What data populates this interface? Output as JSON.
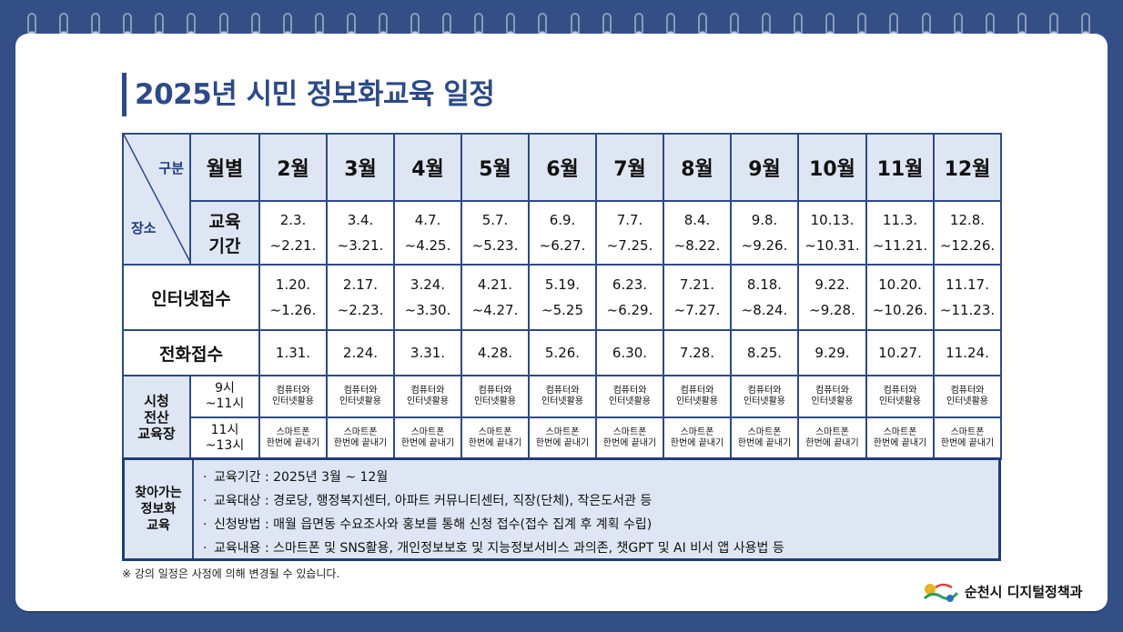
{
  "title": "2025년 시민 정보화교육 일정",
  "header": {
    "corner_top": "구분",
    "corner_bottom": "장소",
    "month_label": "월별",
    "months": [
      "2월",
      "3월",
      "4월",
      "5월",
      "6월",
      "7월",
      "8월",
      "9월",
      "10월",
      "11월",
      "12월"
    ]
  },
  "rows": {
    "period": {
      "label_line1": "교육",
      "label_line2": "기간",
      "start": [
        "2.3.",
        "3.4.",
        "4.7.",
        "5.7.",
        "6.9.",
        "7.7.",
        "8.4.",
        "9.8.",
        "10.13.",
        "11.3.",
        "12.8."
      ],
      "end": [
        "~2.21.",
        "~3.21.",
        "~4.25.",
        "~5.23.",
        "~6.27.",
        "~7.25.",
        "~8.22.",
        "~9.26.",
        "~10.31.",
        "~11.21.",
        "~12.26."
      ]
    },
    "internet": {
      "label": "인터넷접수",
      "start": [
        "1.20.",
        "2.17.",
        "3.24.",
        "4.21.",
        "5.19.",
        "6.23.",
        "7.21.",
        "8.18.",
        "9.22.",
        "10.20.",
        "11.17."
      ],
      "end": [
        "~1.26.",
        "~2.23.",
        "~3.30.",
        "~4.27.",
        "~5.25",
        "~6.29.",
        "~7.27.",
        "~8.24.",
        "~9.28.",
        "~10.26.",
        "~11.23."
      ]
    },
    "phone": {
      "label": "전화접수",
      "dates": [
        "1.31.",
        "2.24.",
        "3.31.",
        "4.28.",
        "5.26.",
        "6.30.",
        "7.28.",
        "8.25.",
        "9.29.",
        "10.27.",
        "11.24."
      ]
    },
    "center": {
      "label_line1": "시청",
      "label_line2": "전산",
      "label_line3": "교육장",
      "slot1_line1": "9시",
      "slot1_line2": "~11시",
      "slot1_course_line1": "컴퓨터와",
      "slot1_course_line2": "인터넷활용",
      "slot2_line1": "11시",
      "slot2_line2": "~13시",
      "slot2_course_line1": "스마트폰",
      "slot2_course_line2": "한번에 끝내기"
    }
  },
  "visit": {
    "label_line1": "찾아가는",
    "label_line2": "정보화",
    "label_line3": "교육",
    "bullet": "·",
    "items": [
      "교육기간 : 2025년 3월 ~ 12월",
      "교육대상 : 경로당, 행정복지센터, 아파트 커뮤니티센터, 직장(단체), 작은도서관 등",
      "신청방법 : 매월 읍면동 수요조사와 홍보를 통해 신청 접수(접수 집계 후 계획 수립)",
      "교육내용 : 스마트폰 및 SNS활용, 개인정보보호 및 지능정보서비스 과의존, 챗GPT 및 AI 비서 앱 사용법 등"
    ]
  },
  "note": "※ 강의 일정은 사정에 의해 변경될 수 있습니다.",
  "footer": {
    "logo_icon": "suncheon-city-logo",
    "department": "순천시 디지털정책과"
  },
  "colors": {
    "background": "#334f86",
    "accent": "#2d4a86",
    "header_fill": "#dfe6f3"
  }
}
